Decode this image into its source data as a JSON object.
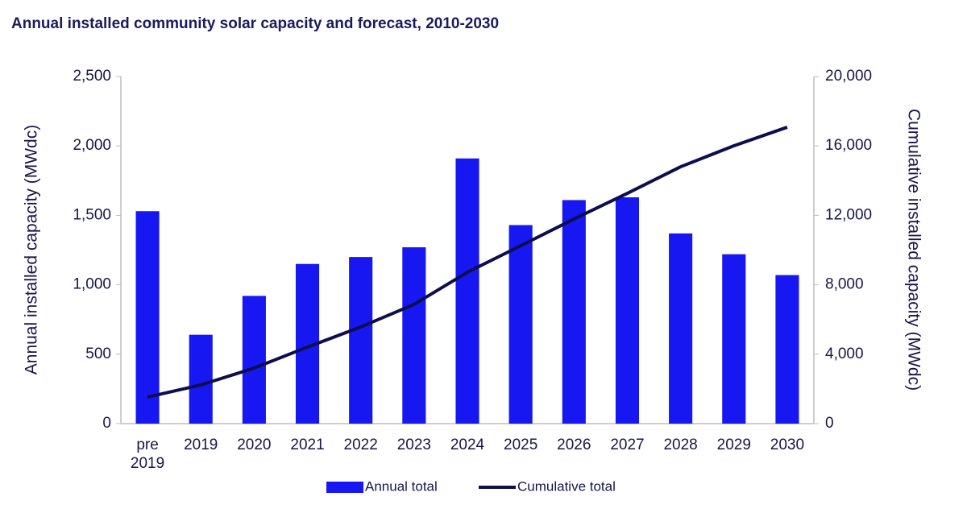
{
  "chart_data": {
    "type": "bar-line",
    "title": "Annual installed community solar capacity and forecast, 2010-2030",
    "ylabel": "Annual installed capacity (MWdc)",
    "y2label": "Cumulative installed capacity (MWdc)",
    "categories": [
      "pre 2019",
      "2019",
      "2020",
      "2021",
      "2022",
      "2023",
      "2024",
      "2025",
      "2026",
      "2027",
      "2028",
      "2029",
      "2030"
    ],
    "series": [
      {
        "name": "Annual total",
        "type": "bar",
        "color": "#1717f2",
        "values": [
          1530,
          640,
          920,
          1150,
          1200,
          1270,
          1910,
          1430,
          1610,
          1630,
          1370,
          1220,
          1070
        ]
      },
      {
        "name": "Cumulative total",
        "type": "line",
        "axis": "y2",
        "color": "#0e0e4f",
        "values": [
          1530,
          2230,
          3200,
          4410,
          5570,
          6870,
          8720,
          10250,
          11790,
          13270,
          14800,
          16010,
          17080
        ]
      }
    ],
    "ylim": [
      0,
      2500
    ],
    "yticks": [
      0,
      500,
      {
        "value": 1000,
        "label": "1,000"
      },
      {
        "value": 1500,
        "label": "1,500"
      },
      {
        "value": 2000,
        "label": "2,000"
      },
      {
        "value": 2500,
        "label": "2,500"
      }
    ],
    "y2lim": [
      0,
      20000
    ],
    "y2ticks": [
      0,
      {
        "value": 4000,
        "label": "4,000"
      },
      {
        "value": 8000,
        "label": "8,000"
      },
      {
        "value": 12000,
        "label": "12,000"
      },
      {
        "value": 16000,
        "label": "16,000"
      },
      {
        "value": 20000,
        "label": "20,000"
      }
    ],
    "grid": false,
    "legend": "bottom"
  }
}
